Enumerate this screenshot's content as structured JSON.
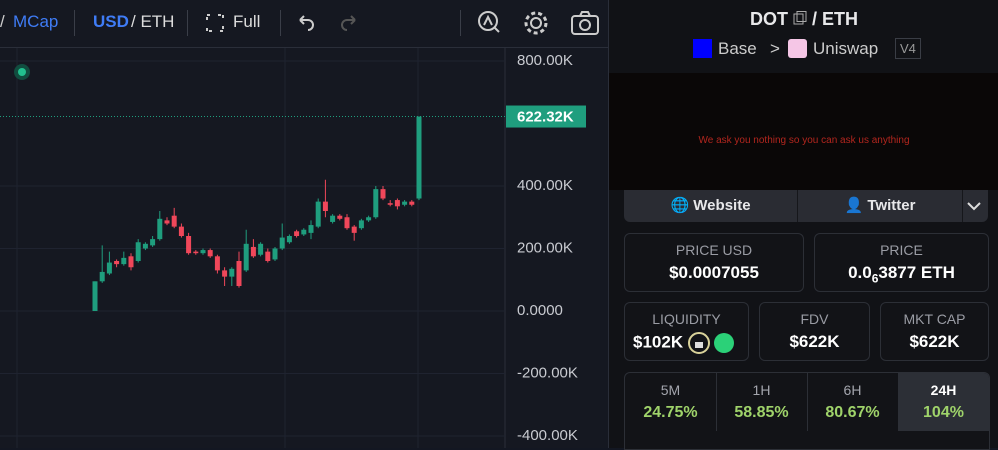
{
  "toolbar": {
    "slash": "/",
    "mcap": "MCap",
    "usd": "USD",
    "eth": "/ ETH",
    "full": "Full"
  },
  "chart": {
    "type": "candlestick",
    "ylim": [
      -400,
      800
    ],
    "yticks": [
      {
        "value": 800,
        "label": "800.00K"
      },
      {
        "value": 400,
        "label": "400.00K"
      },
      {
        "value": 200,
        "label": "200.00K"
      },
      {
        "value": 0,
        "label": "0.0000"
      },
      {
        "value": -200,
        "label": "-200.00K"
      },
      {
        "value": -400,
        "label": "-400.00K"
      }
    ],
    "last_price": {
      "value": 622.32,
      "label": "622.32K"
    },
    "up_color": "#1f9e7e",
    "down_color": "#f0475a",
    "open": [
      0,
      95,
      120,
      160,
      150,
      175,
      160,
      200,
      210,
      230,
      290,
      305,
      270,
      240,
      190,
      185,
      195,
      175,
      130,
      110,
      160,
      130,
      205,
      180,
      190,
      165,
      200,
      220,
      255,
      245,
      250,
      270,
      350,
      285,
      305,
      300,
      270,
      265,
      290,
      300,
      390,
      345,
      355,
      340,
      350,
      360
    ],
    "high": [
      95,
      210,
      190,
      165,
      190,
      185,
      230,
      220,
      240,
      320,
      300,
      330,
      280,
      250,
      195,
      200,
      200,
      180,
      140,
      140,
      190,
      260,
      230,
      220,
      200,
      205,
      280,
      245,
      260,
      265,
      290,
      360,
      420,
      310,
      310,
      310,
      275,
      295,
      305,
      400,
      400,
      355,
      360,
      355,
      355,
      622.32
    ],
    "low": [
      0,
      90,
      115,
      140,
      145,
      130,
      155,
      195,
      205,
      225,
      275,
      265,
      235,
      180,
      180,
      180,
      170,
      120,
      80,
      80,
      75,
      125,
      170,
      175,
      155,
      160,
      195,
      215,
      235,
      240,
      230,
      265,
      300,
      280,
      290,
      260,
      225,
      260,
      285,
      295,
      355,
      335,
      325,
      335,
      335,
      355
    ],
    "close": [
      95,
      125,
      155,
      150,
      170,
      140,
      220,
      215,
      230,
      295,
      280,
      270,
      240,
      185,
      185,
      195,
      175,
      130,
      110,
      135,
      80,
      215,
      175,
      215,
      160,
      200,
      235,
      240,
      240,
      260,
      275,
      350,
      320,
      305,
      295,
      265,
      250,
      290,
      300,
      390,
      360,
      340,
      335,
      350,
      340,
      622.32
    ]
  },
  "pair": {
    "base": "DOT",
    "sep": "/",
    "quote": "ETH",
    "chain": "Base",
    "arrow": ">",
    "dex": "Uniswap",
    "version": "V4"
  },
  "banner": "We ask you nothing so you can ask us anything",
  "links": {
    "website": "Website",
    "twitter": "Twitter"
  },
  "stats": {
    "price_usd": {
      "label": "PRICE USD",
      "value": "$0.0007055"
    },
    "price": {
      "label": "PRICE",
      "lead": "0.0",
      "zeros": 6,
      "rest": "3877 ETH"
    },
    "liquidity": {
      "label": "LIQUIDITY",
      "value": "$102K"
    },
    "fdv": {
      "label": "FDV",
      "value": "$622K"
    },
    "mkt_cap": {
      "label": "MKT CAP",
      "value": "$622K"
    }
  },
  "tabs": [
    {
      "label": "5M",
      "value": "24.75%"
    },
    {
      "label": "1H",
      "value": "58.85%"
    },
    {
      "label": "6H",
      "value": "80.67%"
    },
    {
      "label": "24H",
      "value": "104%"
    }
  ]
}
